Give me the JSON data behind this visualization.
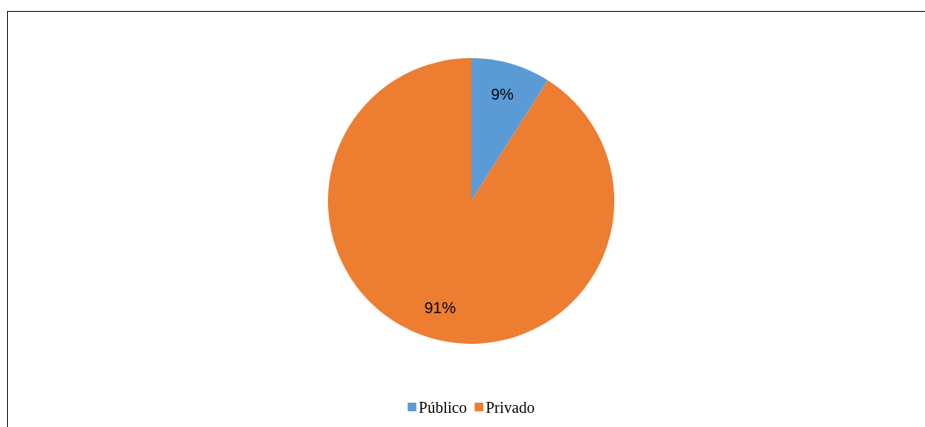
{
  "chart_data": {
    "type": "pie",
    "categories": [
      "Público",
      "Privado"
    ],
    "values": [
      9,
      91
    ],
    "value_labels": [
      "9%",
      "91%"
    ],
    "colors": [
      "#5b9bd5",
      "#ed7d31"
    ],
    "legend": "bottom"
  }
}
